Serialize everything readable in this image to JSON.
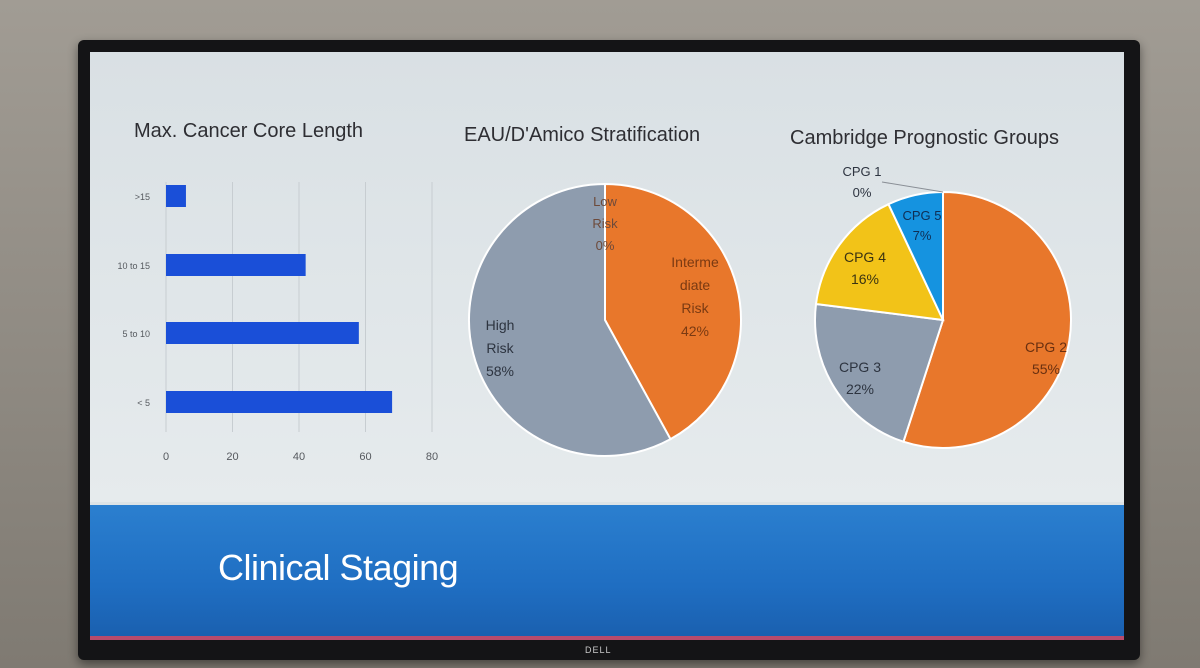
{
  "slide": {
    "title": "Clinical Staging"
  },
  "monitor": {
    "brand": "DELL"
  },
  "colors": {
    "bar": "#1a4fd8",
    "orange": "#e8772b",
    "gray": "#8e9cae",
    "yellow": "#f2c318",
    "blue": "#1593e0",
    "footer": "#2474c8"
  },
  "chart_data": [
    {
      "type": "bar",
      "orientation": "horizontal",
      "title": "Max. Cancer Core Length",
      "categories": [
        ">15",
        "10 to 15",
        "5 to 10",
        "< 5"
      ],
      "values": [
        6,
        42,
        58,
        68
      ],
      "xlim": [
        0,
        80
      ],
      "xticks": [
        "0",
        "20",
        "40",
        "60",
        "80"
      ],
      "grid": true
    },
    {
      "type": "pie",
      "title": "EAU/D'Amico Stratification",
      "slices": [
        {
          "label_lines": [
            "Low",
            "Risk",
            "0%"
          ],
          "value": 0,
          "color": "gray"
        },
        {
          "label_lines": [
            "Interme",
            "diate",
            "Risk",
            "42%"
          ],
          "value": 42,
          "color": "orange"
        },
        {
          "label_lines": [
            "High",
            "Risk",
            "58%"
          ],
          "value": 58,
          "color": "gray"
        }
      ]
    },
    {
      "type": "pie",
      "title": "Cambridge Prognostic Groups",
      "slices": [
        {
          "label_lines": [
            "CPG 1",
            "0%"
          ],
          "value": 0,
          "color": "gray"
        },
        {
          "label_lines": [
            "CPG 2",
            "55%"
          ],
          "value": 55,
          "color": "orange"
        },
        {
          "label_lines": [
            "CPG 3",
            "22%"
          ],
          "value": 22,
          "color": "gray"
        },
        {
          "label_lines": [
            "CPG 4",
            "16%"
          ],
          "value": 16,
          "color": "yellow"
        },
        {
          "label_lines": [
            "CPG 5",
            "7%"
          ],
          "value": 7,
          "color": "blue"
        }
      ]
    }
  ]
}
